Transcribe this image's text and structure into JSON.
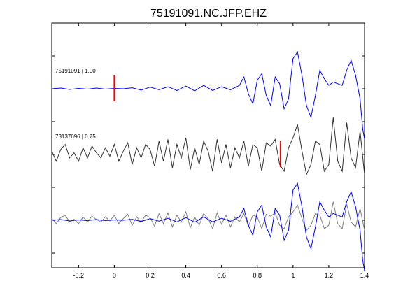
{
  "chart_data": {
    "type": "line",
    "title": "75191091.NC.JFP.EHZ",
    "xlabel": "",
    "ylabel": "",
    "xlim": [
      -0.35,
      1.4
    ],
    "grid": false,
    "x_ticks": [
      -0.2,
      0,
      0.2,
      0.4,
      0.6,
      0.8,
      1,
      1.2,
      1.4
    ],
    "x_tick_labels": [
      "-0.2",
      "0",
      "0.2",
      "0.4",
      "0.6",
      "0.8",
      "1",
      "1.2",
      "1.4"
    ],
    "traces": [
      {
        "label": "75191091 | 1.00",
        "color": "#0000ff",
        "pick_x": 0.0,
        "pick_color": "#ff0000",
        "x": [
          -0.35,
          -0.3,
          -0.25,
          -0.2,
          -0.15,
          -0.1,
          -0.05,
          0,
          0.05,
          0.1,
          0.15,
          0.2,
          0.25,
          0.3,
          0.35,
          0.4,
          0.45,
          0.5,
          0.55,
          0.6,
          0.65,
          0.7,
          0.725,
          0.75,
          0.775,
          0.8,
          0.825,
          0.85,
          0.875,
          0.9,
          0.925,
          0.95,
          0.975,
          1.0,
          1.025,
          1.05,
          1.075,
          1.1,
          1.125,
          1.15,
          1.175,
          1.2,
          1.225,
          1.25,
          1.275,
          1.3,
          1.325,
          1.35,
          1.375,
          1.39,
          1.4
        ],
        "y": [
          0,
          0.02,
          -0.02,
          0.01,
          -0.01,
          0.02,
          -0.01,
          0.01,
          0,
          0.03,
          -0.04,
          0.05,
          -0.03,
          0.06,
          -0.05,
          0.08,
          -0.06,
          0.1,
          -0.05,
          0.06,
          -0.03,
          0.1,
          0.35,
          -0.15,
          -0.45,
          0.25,
          0.45,
          -0.2,
          -0.5,
          0.35,
          0.15,
          -0.6,
          -0.3,
          0.9,
          1.1,
          0.4,
          -0.5,
          -0.85,
          -0.2,
          0.55,
          0.3,
          0.1,
          0.2,
          0.15,
          0.1,
          0.55,
          0.85,
          0.4,
          -0.3,
          -1.2,
          -1.5
        ]
      },
      {
        "label": "73137696 | 0.75",
        "color": "#303030",
        "pick_x": 0.93,
        "pick_color": "#ff0000",
        "x": [
          -0.35,
          -0.325,
          -0.3,
          -0.275,
          -0.25,
          -0.225,
          -0.2,
          -0.175,
          -0.15,
          -0.125,
          -0.1,
          -0.075,
          -0.05,
          -0.025,
          0,
          0.025,
          0.05,
          0.075,
          0.1,
          0.125,
          0.15,
          0.175,
          0.2,
          0.225,
          0.25,
          0.275,
          0.3,
          0.325,
          0.35,
          0.375,
          0.4,
          0.425,
          0.45,
          0.475,
          0.5,
          0.525,
          0.55,
          0.575,
          0.6,
          0.625,
          0.65,
          0.675,
          0.7,
          0.725,
          0.75,
          0.775,
          0.8,
          0.825,
          0.85,
          0.875,
          0.9,
          0.925,
          0.95,
          0.975,
          1.0,
          1.025,
          1.05,
          1.075,
          1.1,
          1.125,
          1.15,
          1.175,
          1.2,
          1.225,
          1.25,
          1.275,
          1.3,
          1.325,
          1.35,
          1.375,
          1.4
        ],
        "y": [
          0.1,
          -0.2,
          0.15,
          0.3,
          -0.1,
          0.05,
          -0.2,
          0.2,
          -0.1,
          0.25,
          0.05,
          -0.1,
          0.2,
          -0.05,
          0.3,
          -0.2,
          0.1,
          0.35,
          -0.3,
          0.2,
          -0.1,
          0.3,
          0.15,
          -0.35,
          0.4,
          -0.2,
          0.45,
          -0.4,
          0.3,
          -0.1,
          0.5,
          -0.45,
          0.2,
          -0.3,
          0.4,
          0.1,
          -0.5,
          0.45,
          -0.25,
          0.3,
          -0.4,
          0.2,
          -0.1,
          0.4,
          -0.35,
          0.3,
          0.2,
          -0.5,
          0.35,
          0.25,
          0.45,
          -0.3,
          -0.5,
          0.2,
          0.5,
          0.9,
          0.1,
          -0.6,
          -0.3,
          0.4,
          0.3,
          -0.5,
          -0.3,
          1.1,
          -0.2,
          -0.5,
          0.95,
          -0.1,
          -0.4,
          0.7,
          -0.6
        ]
      },
      {
        "label": "",
        "overlay": true,
        "series": [
          {
            "color": "#0000ff",
            "x": [
              -0.35,
              -0.3,
              -0.25,
              -0.2,
              -0.15,
              -0.1,
              -0.05,
              0,
              0.05,
              0.1,
              0.15,
              0.2,
              0.25,
              0.3,
              0.35,
              0.4,
              0.45,
              0.5,
              0.55,
              0.6,
              0.65,
              0.7,
              0.725,
              0.75,
              0.775,
              0.8,
              0.825,
              0.85,
              0.875,
              0.9,
              0.925,
              0.95,
              0.975,
              1.0,
              1.025,
              1.05,
              1.075,
              1.1,
              1.125,
              1.15,
              1.175,
              1.2,
              1.225,
              1.25,
              1.275,
              1.3,
              1.325,
              1.35,
              1.375,
              1.39,
              1.4
            ],
            "y": [
              0,
              0.02,
              -0.02,
              0.01,
              -0.01,
              0.02,
              -0.01,
              0.01,
              0,
              0.03,
              -0.04,
              0.05,
              -0.03,
              0.06,
              -0.05,
              0.08,
              -0.06,
              0.1,
              -0.05,
              0.06,
              -0.03,
              0.1,
              0.35,
              -0.15,
              -0.45,
              0.25,
              0.45,
              -0.2,
              -0.5,
              0.35,
              0.15,
              -0.6,
              -0.3,
              0.9,
              1.1,
              0.4,
              -0.5,
              -0.85,
              -0.2,
              0.55,
              0.3,
              0.1,
              0.2,
              0.15,
              0.1,
              0.55,
              0.85,
              0.4,
              -0.3,
              -1.2,
              -1.5
            ]
          },
          {
            "color": "#808080",
            "x": [
              -0.35,
              -0.325,
              -0.3,
              -0.275,
              -0.25,
              -0.225,
              -0.2,
              -0.175,
              -0.15,
              -0.125,
              -0.1,
              -0.075,
              -0.05,
              -0.025,
              0,
              0.025,
              0.05,
              0.075,
              0.1,
              0.125,
              0.15,
              0.175,
              0.2,
              0.225,
              0.25,
              0.275,
              0.3,
              0.325,
              0.35,
              0.375,
              0.4,
              0.425,
              0.45,
              0.475,
              0.5,
              0.525,
              0.55,
              0.575,
              0.6,
              0.625,
              0.65,
              0.675,
              0.7,
              0.725,
              0.75,
              0.775,
              0.8,
              0.825,
              0.85,
              0.875,
              0.9,
              0.925,
              0.95,
              0.975,
              1.0,
              1.025,
              1.05,
              1.075,
              1.1,
              1.125,
              1.15,
              1.175,
              1.2,
              1.225,
              1.25,
              1.275,
              1.3,
              1.325,
              1.35,
              1.375,
              1.4
            ],
            "y": [
              0.05,
              -0.1,
              0.08,
              0.15,
              -0.05,
              0.03,
              -0.1,
              0.1,
              -0.05,
              0.12,
              0.02,
              -0.05,
              0.1,
              -0.02,
              0.15,
              -0.1,
              0.05,
              0.18,
              -0.15,
              0.1,
              -0.05,
              0.15,
              0.08,
              -0.18,
              0.2,
              -0.1,
              0.22,
              -0.2,
              0.15,
              -0.05,
              0.25,
              -0.22,
              0.1,
              -0.15,
              0.2,
              0.05,
              -0.25,
              0.22,
              -0.12,
              0.15,
              -0.2,
              0.1,
              -0.05,
              0.2,
              -0.18,
              0.15,
              0.1,
              -0.25,
              0.18,
              0.12,
              0.22,
              -0.15,
              -0.25,
              0.1,
              0.25,
              0.45,
              0.05,
              -0.3,
              -0.15,
              0.2,
              0.15,
              -0.25,
              -0.15,
              0.55,
              -0.1,
              -0.25,
              0.48,
              -0.05,
              -0.2,
              0.35,
              -0.3
            ]
          }
        ]
      }
    ]
  }
}
